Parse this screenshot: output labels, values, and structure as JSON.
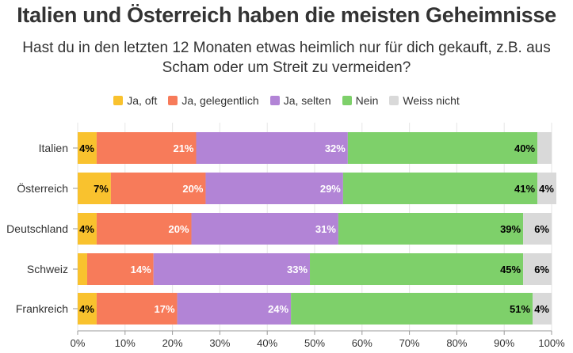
{
  "chart_data": {
    "type": "bar",
    "orientation": "horizontal",
    "stacked": true,
    "title": "Italien und Österreich haben die meisten Geheimnisse",
    "subtitle": "Hast du in den letzten 12 Monaten etwas heimlich nur für dich gekauft, z.B. aus Scham oder um Streit zu vermeiden?",
    "categories": [
      "Italien",
      "Österreich",
      "Deutschland",
      "Schweiz",
      "Frankreich"
    ],
    "series": [
      {
        "name": "Ja, oft",
        "color": "#f9c22e",
        "values": [
          4,
          7,
          4,
          2,
          4
        ],
        "labels": [
          "4%",
          "7%",
          "4%",
          "",
          "4%"
        ]
      },
      {
        "name": "Ja, gelegentlich",
        "color": "#f77b5a",
        "values": [
          21,
          20,
          20,
          14,
          17
        ],
        "labels": [
          "21%",
          "20%",
          "20%",
          "14%",
          "17%"
        ]
      },
      {
        "name": "Ja, selten",
        "color": "#b284d6",
        "values": [
          32,
          29,
          31,
          33,
          24
        ],
        "labels": [
          "32%",
          "29%",
          "31%",
          "33%",
          "24%"
        ]
      },
      {
        "name": "Nein",
        "color": "#7ed06a",
        "values": [
          40,
          41,
          39,
          45,
          51
        ],
        "labels": [
          "40%",
          "41%",
          "39%",
          "45%",
          "51%"
        ]
      },
      {
        "name": "Weiss nicht",
        "color": "#d9d9d9",
        "values": [
          3,
          4,
          6,
          6,
          4
        ],
        "labels": [
          "",
          "4%",
          "6%",
          "6%",
          "4%"
        ]
      }
    ],
    "xlim": [
      0,
      100
    ],
    "xticks": [
      "0%",
      "10%",
      "20%",
      "30%",
      "40%",
      "50%",
      "60%",
      "70%",
      "80%",
      "90%",
      "100%"
    ],
    "legend": "top-center",
    "grid": true
  }
}
